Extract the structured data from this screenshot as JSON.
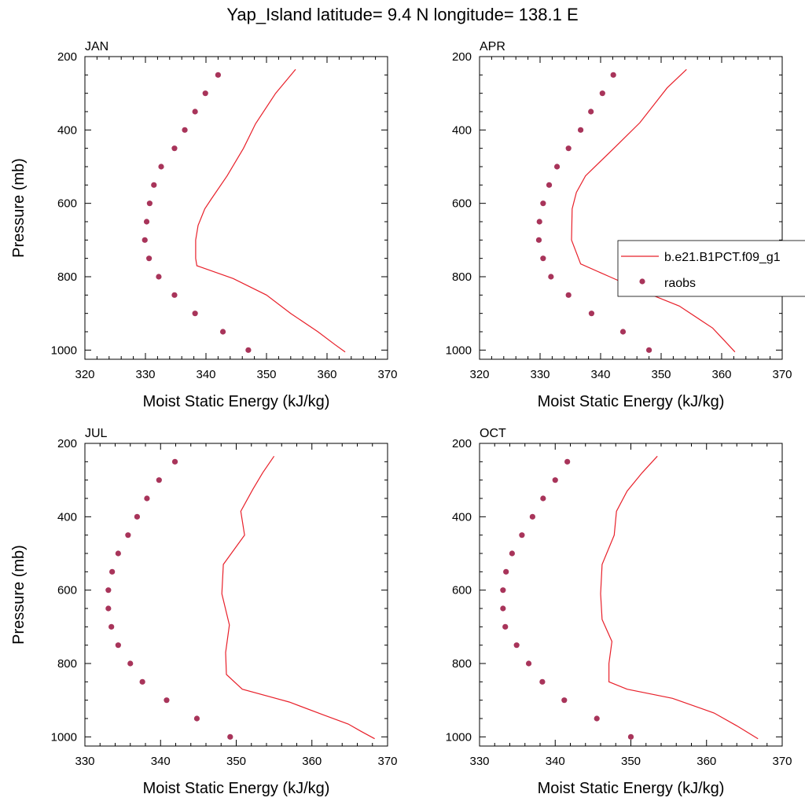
{
  "figure": {
    "title": "Yap_Island  latitude= 9.4 N longitude= 138.1 E"
  },
  "legend": {
    "model_label": "b.e21.B1PCT.f09_g1",
    "obs_label": "raobs"
  },
  "colors": {
    "model": "#e8202a",
    "obs": "#a8345a",
    "axis": "#000000"
  },
  "chart_data": [
    {
      "type": "line",
      "panel_label": "JAN",
      "xlabel": "Moist Static Energy (kJ/kg)",
      "ylabel": "Pressure (mb)",
      "xlim": [
        320,
        370
      ],
      "ylim": [
        200,
        1025
      ],
      "y_reversed": true,
      "xticks": [
        "320",
        "330",
        "340",
        "350",
        "360",
        "370"
      ],
      "yticks": [
        "200",
        "400",
        "600",
        "800",
        "1000"
      ],
      "series": [
        {
          "name": "b.e21.B1PCT.f09_g1",
          "style": "line",
          "x": [
            354.8,
            351.5,
            348.2,
            346.2,
            343.5,
            340.8,
            339.8,
            338.7,
            338.3,
            338.3,
            338.5,
            344.5,
            350.0,
            354.0,
            358.5,
            361.3,
            363.0
          ],
          "y": [
            235,
            300,
            383,
            450,
            525,
            590,
            615,
            660,
            700,
            750,
            770,
            805,
            850,
            900,
            950,
            985,
            1005
          ]
        },
        {
          "name": "raobs",
          "style": "markers",
          "x": [
            342.0,
            339.9,
            338.2,
            336.5,
            334.8,
            332.6,
            331.4,
            330.7,
            330.2,
            329.9,
            330.6,
            332.2,
            334.8,
            338.2,
            342.8,
            347.0
          ],
          "y": [
            250,
            300,
            350,
            400,
            450,
            500,
            550,
            600,
            650,
            700,
            750,
            800,
            850,
            900,
            950,
            1000
          ]
        }
      ]
    },
    {
      "type": "line",
      "panel_label": "APR",
      "xlabel": "Moist Static Energy (kJ/kg)",
      "ylabel": "",
      "xlim": [
        320,
        370
      ],
      "ylim": [
        200,
        1025
      ],
      "y_reversed": true,
      "xticks": [
        "320",
        "330",
        "340",
        "350",
        "360",
        "370"
      ],
      "yticks": [
        "200",
        "400",
        "600",
        "800",
        "1000"
      ],
      "series": [
        {
          "name": "b.e21.B1PCT.f09_g1",
          "style": "line",
          "x": [
            354.2,
            351.0,
            346.5,
            342.5,
            337.5,
            336.0,
            335.3,
            335.2,
            336.7,
            341.5,
            347.0,
            353.0,
            358.5,
            360.5,
            362.2
          ],
          "y": [
            235,
            285,
            380,
            445,
            525,
            570,
            615,
            700,
            765,
            800,
            840,
            880,
            940,
            975,
            1005
          ]
        },
        {
          "name": "raobs",
          "style": "markers",
          "x": [
            342.1,
            340.3,
            338.4,
            336.7,
            334.7,
            332.8,
            331.5,
            330.5,
            329.9,
            329.8,
            330.5,
            331.8,
            334.7,
            338.5,
            343.7,
            348.0
          ],
          "y": [
            250,
            300,
            350,
            400,
            450,
            500,
            550,
            600,
            650,
            700,
            750,
            800,
            850,
            900,
            950,
            1000
          ]
        }
      ]
    },
    {
      "type": "line",
      "panel_label": "JUL",
      "xlabel": "Moist Static Energy (kJ/kg)",
      "ylabel": "Pressure (mb)",
      "xlim": [
        330,
        370
      ],
      "ylim": [
        200,
        1025
      ],
      "y_reversed": true,
      "xticks": [
        "330",
        "340",
        "350",
        "360",
        "370"
      ],
      "yticks": [
        "200",
        "400",
        "600",
        "800",
        "1000"
      ],
      "series": [
        {
          "name": "b.e21.B1PCT.f09_g1",
          "style": "line",
          "x": [
            355.0,
            353.5,
            352.2,
            350.6,
            351.1,
            348.3,
            348.1,
            349.1,
            348.6,
            348.7,
            350.8,
            357.0,
            361.5,
            364.8,
            366.5,
            368.3
          ],
          "y": [
            235,
            280,
            325,
            385,
            450,
            530,
            610,
            695,
            770,
            830,
            870,
            905,
            940,
            965,
            985,
            1005
          ]
        },
        {
          "name": "raobs",
          "style": "markers",
          "x": [
            341.9,
            339.8,
            338.2,
            336.9,
            335.7,
            334.4,
            333.6,
            333.1,
            333.1,
            333.5,
            334.4,
            336.0,
            337.6,
            340.8,
            344.8,
            349.2
          ],
          "y": [
            250,
            300,
            350,
            400,
            450,
            500,
            550,
            600,
            650,
            700,
            750,
            800,
            850,
            900,
            950,
            1000
          ]
        }
      ]
    },
    {
      "type": "line",
      "panel_label": "OCT",
      "xlabel": "Moist Static Energy (kJ/kg)",
      "ylabel": "",
      "xlim": [
        330,
        370
      ],
      "ylim": [
        200,
        1025
      ],
      "y_reversed": true,
      "xticks": [
        "330",
        "340",
        "350",
        "360",
        "370"
      ],
      "yticks": [
        "200",
        "400",
        "600",
        "800",
        "1000"
      ],
      "series": [
        {
          "name": "b.e21.B1PCT.f09_g1",
          "style": "line",
          "x": [
            353.5,
            351.5,
            349.5,
            348.1,
            347.8,
            346.2,
            346.0,
            346.2,
            347.5,
            347.1,
            347.1,
            349.5,
            355.5,
            361.0,
            364.0,
            366.8
          ],
          "y": [
            235,
            280,
            330,
            385,
            450,
            530,
            610,
            680,
            740,
            800,
            850,
            870,
            895,
            935,
            970,
            1005
          ]
        },
        {
          "name": "raobs",
          "style": "markers",
          "x": [
            341.6,
            340.0,
            338.4,
            337.0,
            335.6,
            334.3,
            333.5,
            333.1,
            333.1,
            333.4,
            334.9,
            336.5,
            338.3,
            341.2,
            345.5,
            350.0
          ],
          "y": [
            250,
            300,
            350,
            400,
            450,
            500,
            550,
            600,
            650,
            700,
            750,
            800,
            850,
            900,
            950,
            1000
          ]
        }
      ]
    }
  ]
}
